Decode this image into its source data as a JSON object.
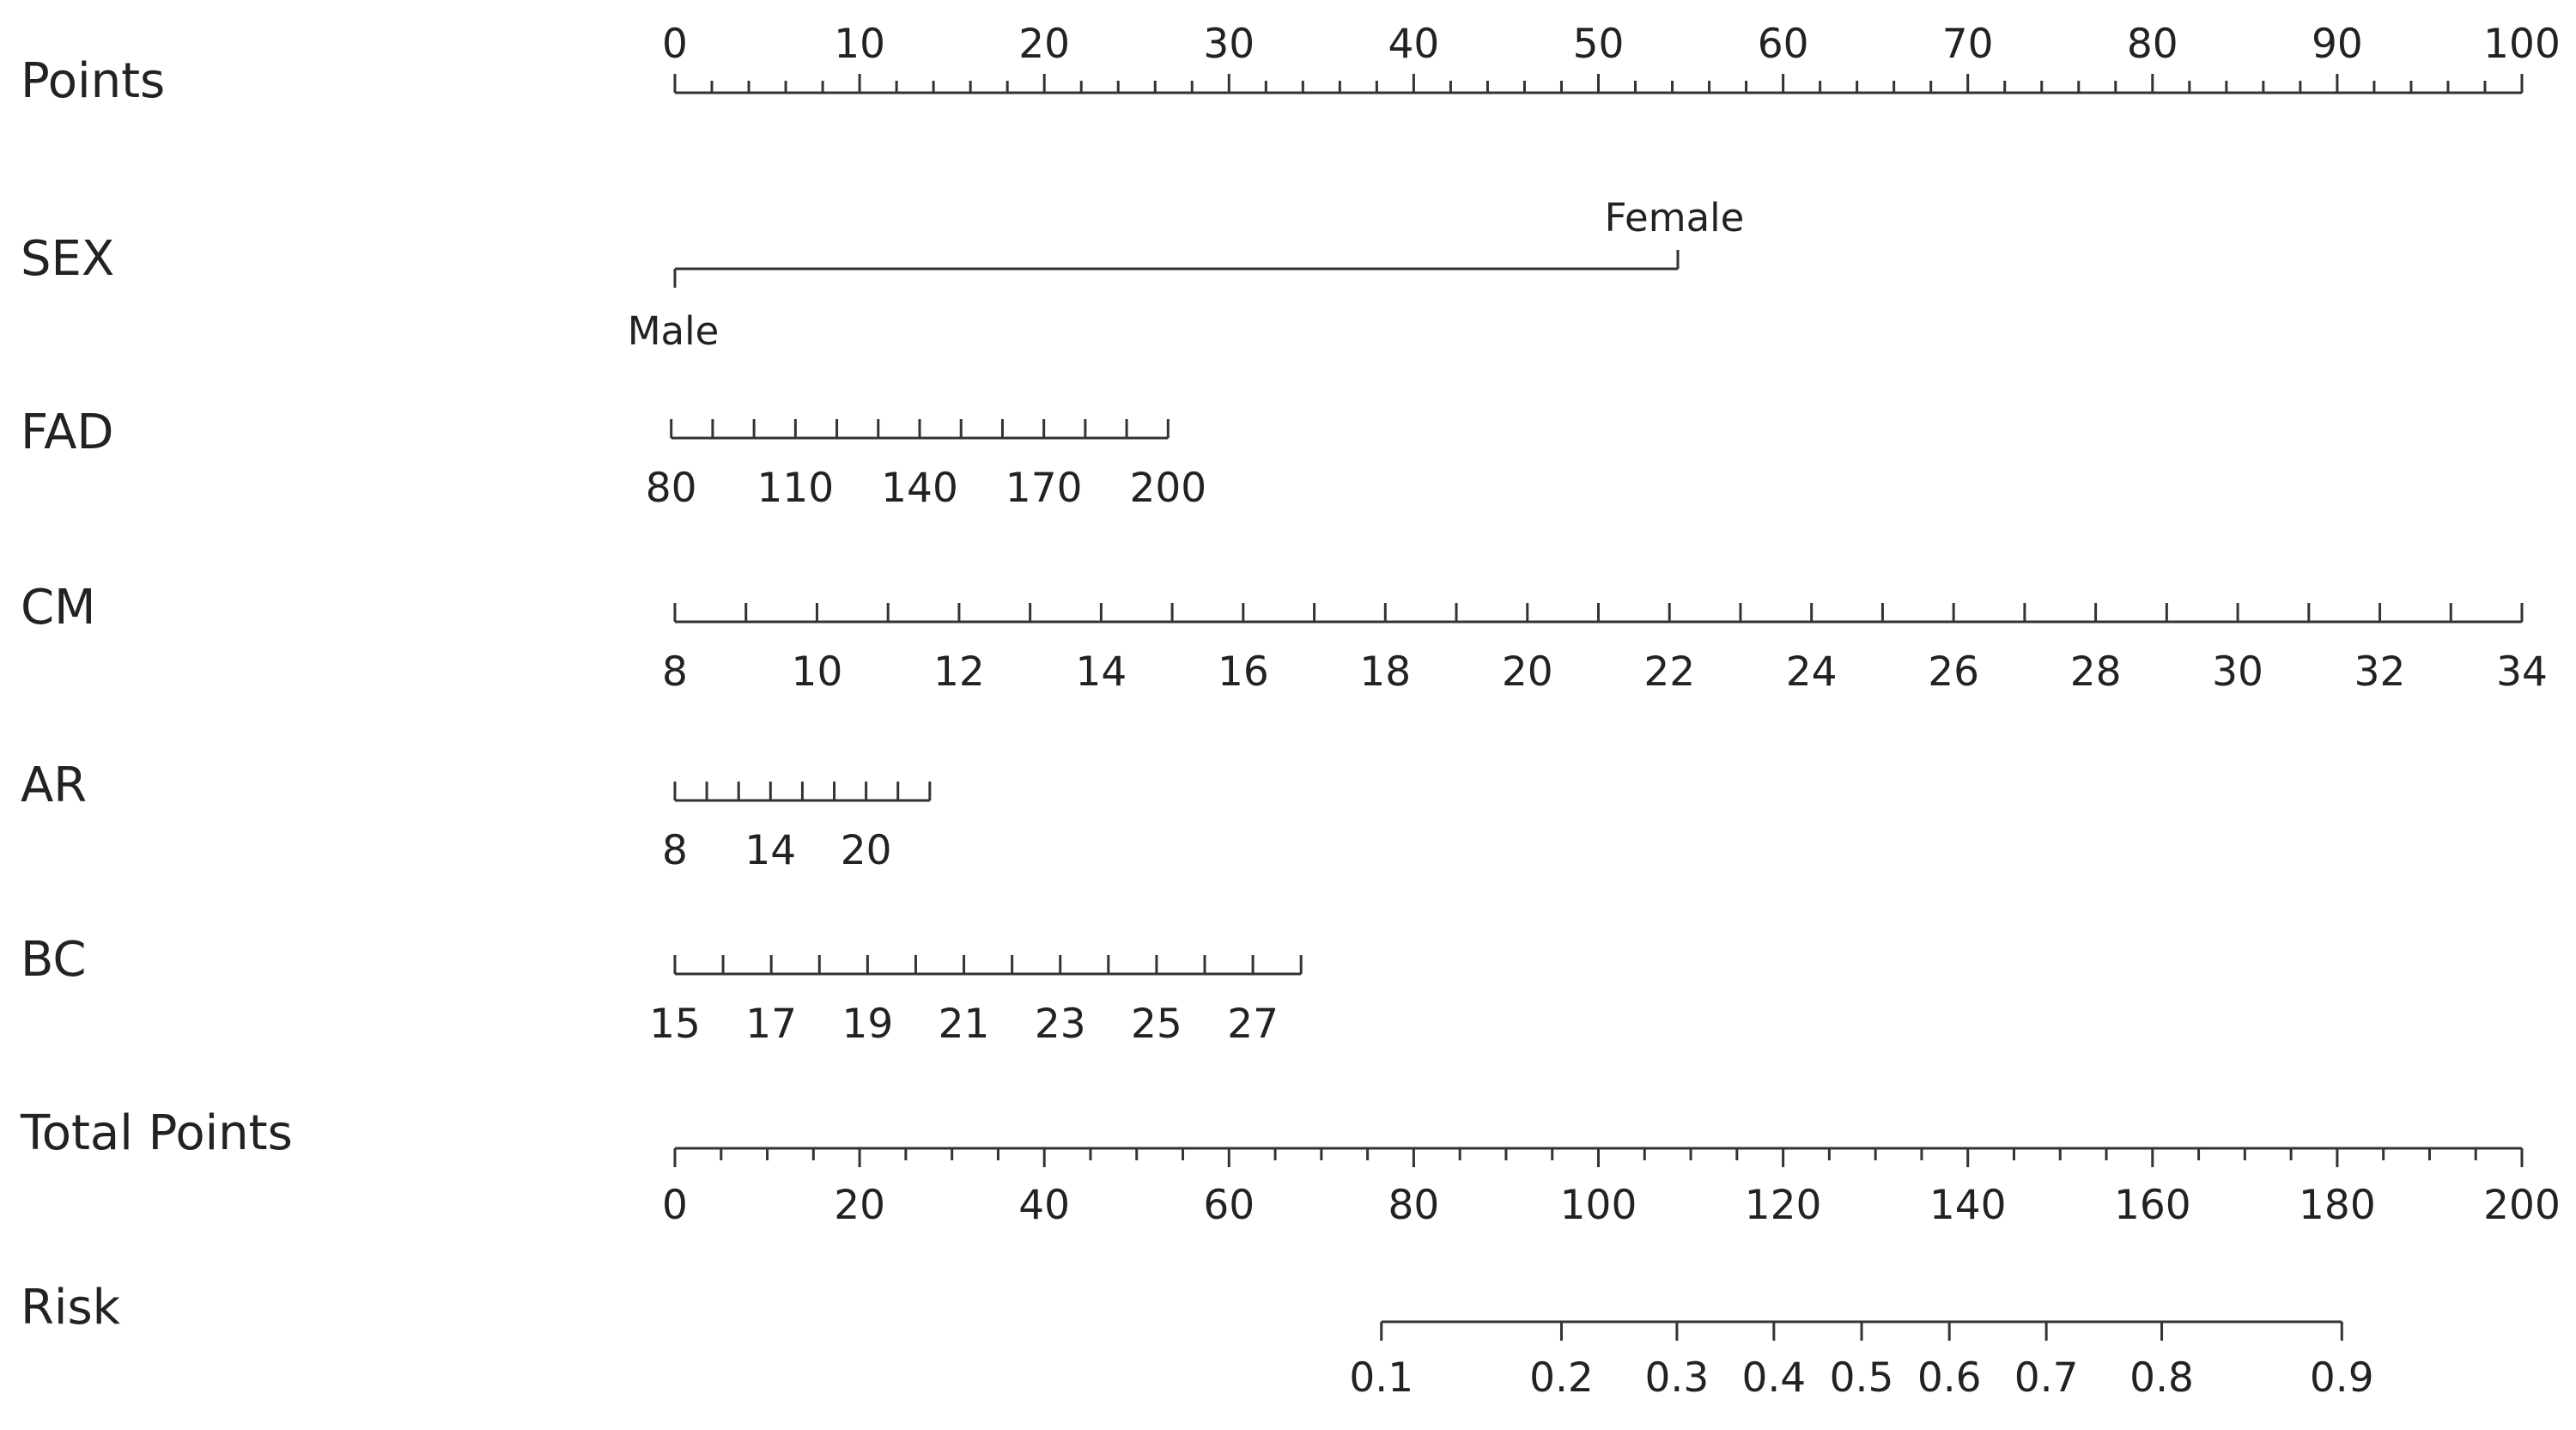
{
  "chart_data": {
    "type": "nomogram",
    "title": "",
    "color": "#333333",
    "rows": [
      {
        "label": "Points",
        "kind": "points",
        "range": [
          0,
          100
        ],
        "tick_labels": [
          "0",
          "10",
          "20",
          "30",
          "40",
          "50",
          "60",
          "70",
          "80",
          "90",
          "100"
        ],
        "major_step": 10,
        "minor_step": 2
      },
      {
        "label": "SEX",
        "kind": "categorical",
        "categories": [
          {
            "name": "Male",
            "points": 0
          },
          {
            "name": "Female",
            "points": 54.3
          }
        ]
      },
      {
        "label": "FAD",
        "kind": "continuous",
        "range": [
          80,
          200
        ],
        "points_range": [
          -0.2,
          26.7
        ],
        "tick_step": 10,
        "tick_labels": [
          "80",
          "110",
          "140",
          "170",
          "200"
        ]
      },
      {
        "label": "CM",
        "kind": "continuous",
        "range": [
          8,
          34
        ],
        "points_range": [
          0,
          100
        ],
        "tick_step": 1,
        "tick_labels": [
          "8",
          "10",
          "12",
          "14",
          "16",
          "18",
          "20",
          "22",
          "24",
          "26",
          "28",
          "30",
          "32",
          "34"
        ]
      },
      {
        "label": "AR",
        "kind": "continuous",
        "range": [
          8,
          24
        ],
        "points_range": [
          0,
          13.8
        ],
        "tick_step": 2,
        "tick_labels": [
          "8",
          "14",
          "20"
        ]
      },
      {
        "label": "BC",
        "kind": "continuous",
        "range": [
          15,
          28
        ],
        "points_range": [
          0,
          33.9
        ],
        "tick_step": 1,
        "tick_labels": [
          "15",
          "17",
          "19",
          "21",
          "23",
          "25",
          "27"
        ]
      },
      {
        "label": "Total Points",
        "kind": "points",
        "range": [
          0,
          200
        ],
        "tick_labels": [
          "0",
          "20",
          "40",
          "60",
          "80",
          "100",
          "120",
          "140",
          "160",
          "180",
          "200"
        ],
        "major_step": 20,
        "minor_step": 5
      },
      {
        "label": "Risk",
        "kind": "risk",
        "ticks": [
          {
            "label": "0.1",
            "total_points": 76.5
          },
          {
            "label": "0.2",
            "total_points": 96.0
          },
          {
            "label": "0.3",
            "total_points": 108.5
          },
          {
            "label": "0.4",
            "total_points": 119.0
          },
          {
            "label": "0.5",
            "total_points": 128.5
          },
          {
            "label": "0.6",
            "total_points": 138.0
          },
          {
            "label": "0.7",
            "total_points": 148.5
          },
          {
            "label": "0.8",
            "total_points": 161.0
          },
          {
            "label": "0.9",
            "total_points": 180.5
          }
        ]
      }
    ]
  }
}
